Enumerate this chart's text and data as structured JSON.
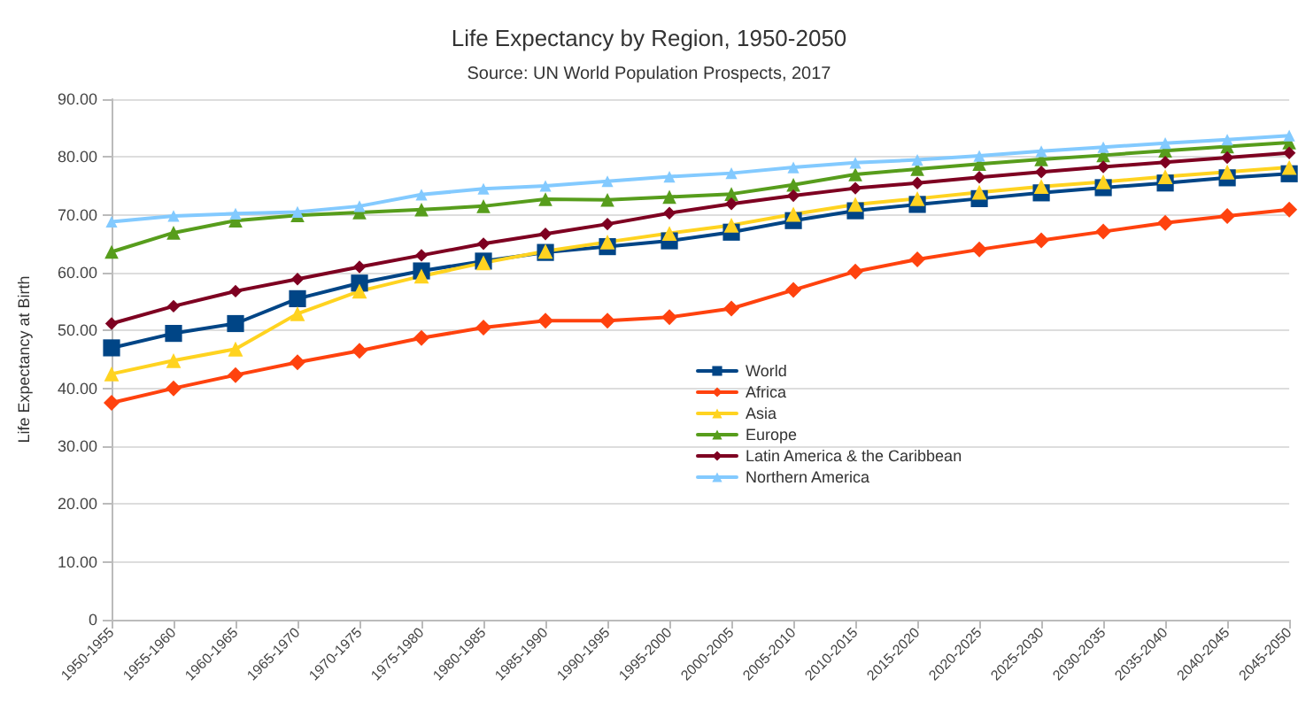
{
  "chart_data": {
    "type": "line",
    "title": "Life Expectancy by Region, 1950-2050",
    "subtitle": "Source: UN World Population Prospects, 2017",
    "ylabel": "Life Expectancy at Birth",
    "categories": [
      "1950-1955",
      "1955-1960",
      "1960-1965",
      "1965-1970",
      "1970-1975",
      "1975-1980",
      "1980-1985",
      "1985-1990",
      "1990-1995",
      "1995-2000",
      "2000-2005",
      "2005-2010",
      "2010-2015",
      "2015-2020",
      "2020-2025",
      "2025-2030",
      "2030-2035",
      "2035-2040",
      "2040-2045",
      "2045-2050"
    ],
    "series": [
      {
        "name": "World",
        "color": "#004586",
        "marker": "square",
        "values": [
          47,
          49.5,
          51.2,
          55.5,
          58.2,
          60.3,
          62,
          63.5,
          64.5,
          65.5,
          67,
          69,
          70.7,
          71.8,
          72.8,
          73.8,
          74.7,
          75.5,
          76.4,
          77.1
        ]
      },
      {
        "name": "Africa",
        "color": "#ff420e",
        "marker": "diamond",
        "values": [
          37.5,
          40,
          42.3,
          44.5,
          46.5,
          48.7,
          50.5,
          51.7,
          51.7,
          52.3,
          53.8,
          57,
          60.2,
          62.3,
          64,
          65.6,
          67.1,
          68.6,
          69.8,
          70.9
        ]
      },
      {
        "name": "Asia",
        "color": "#ffd320",
        "marker": "triangle",
        "values": [
          42.5,
          44.8,
          46.8,
          52.9,
          56.8,
          59.4,
          61.7,
          63.7,
          65.3,
          66.8,
          68.2,
          70.1,
          71.8,
          72.8,
          73.9,
          74.9,
          75.7,
          76.6,
          77.4,
          78.2
        ]
      },
      {
        "name": "Europe",
        "color": "#579d1c",
        "marker": "triangle",
        "values": [
          63.6,
          66.9,
          69,
          69.9,
          70.4,
          70.9,
          71.5,
          72.7,
          72.6,
          73.1,
          73.6,
          75.2,
          77,
          77.9,
          78.8,
          79.6,
          80.3,
          81.1,
          81.8,
          82.5
        ]
      },
      {
        "name": "Latin America & the Caribbean",
        "color": "#7e0021",
        "marker": "diamond",
        "values": [
          51.2,
          54.2,
          56.8,
          58.9,
          61,
          63,
          65,
          66.7,
          68.4,
          70.3,
          71.9,
          73.3,
          74.6,
          75.5,
          76.5,
          77.4,
          78.3,
          79.1,
          79.9,
          80.7
        ]
      },
      {
        "name": "Northern America",
        "color": "#83caff",
        "marker": "triangle",
        "values": [
          68.8,
          69.8,
          70.2,
          70.5,
          71.5,
          73.5,
          74.5,
          75,
          75.8,
          76.6,
          77.2,
          78.2,
          79,
          79.5,
          80.2,
          81,
          81.7,
          82.4,
          83,
          83.7
        ]
      }
    ],
    "ylim": [
      0,
      90
    ],
    "yticks": [
      {
        "value": 0,
        "label": "0"
      },
      {
        "value": 10,
        "label": "10.00"
      },
      {
        "value": 20,
        "label": "20.00"
      },
      {
        "value": 30,
        "label": "30.00"
      },
      {
        "value": 40,
        "label": "40.00"
      },
      {
        "value": 50,
        "label": "50.00"
      },
      {
        "value": 60,
        "label": "60.00"
      },
      {
        "value": 70,
        "label": "70.00"
      },
      {
        "value": 80,
        "label": "80.00"
      },
      {
        "value": 90,
        "label": "90.00"
      }
    ],
    "grid": "y",
    "legend": "center",
    "line_style": "solid"
  }
}
